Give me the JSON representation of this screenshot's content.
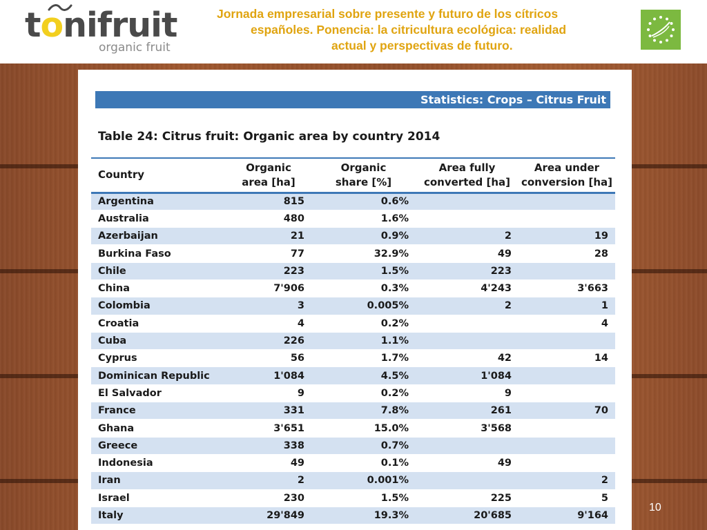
{
  "header": {
    "logo": {
      "text_before": "t",
      "text_o": "o",
      "text_after": "nifruit",
      "tagline": "organic fruit"
    },
    "title_lines": [
      "Jornada empresarial sobre presente y futuro de los cítricos",
      "españoles. Ponencia: la citricultura ecológica: realidad",
      "actual y perspectivas de futuro."
    ],
    "eu_logo_icon": "eu-organic-leaf-icon",
    "title_color": "#e0a410",
    "logo_accent_color": "#f2cf1f"
  },
  "document": {
    "banner": "Statistics: Crops – Citrus Fruit",
    "banner_color": "#3d78b6",
    "caption": "Table 24: Citrus fruit: Organic area by country 2014",
    "table": {
      "columns": [
        {
          "line1": "Country",
          "line2": ""
        },
        {
          "line1": "Organic",
          "line2": "area [ha]"
        },
        {
          "line1": "Organic",
          "line2": "share [%]"
        },
        {
          "line1": "Area fully",
          "line2": "converted [ha]"
        },
        {
          "line1": "Area under",
          "line2": "conversion [ha]"
        }
      ],
      "rows": [
        [
          "Argentina",
          "815",
          "0.6%",
          "",
          ""
        ],
        [
          "Australia",
          "480",
          "1.6%",
          "",
          ""
        ],
        [
          "Azerbaijan",
          "21",
          "0.9%",
          "2",
          "19"
        ],
        [
          "Burkina Faso",
          "77",
          "32.9%",
          "49",
          "28"
        ],
        [
          "Chile",
          "223",
          "1.5%",
          "223",
          ""
        ],
        [
          "China",
          "7'906",
          "0.3%",
          "4'243",
          "3'663"
        ],
        [
          "Colombia",
          "3",
          "0.005%",
          "2",
          "1"
        ],
        [
          "Croatia",
          "4",
          "0.2%",
          "",
          "4"
        ],
        [
          "Cuba",
          "226",
          "1.1%",
          "",
          ""
        ],
        [
          "Cyprus",
          "56",
          "1.7%",
          "42",
          "14"
        ],
        [
          "Dominican Republic",
          "1'084",
          "4.5%",
          "1'084",
          ""
        ],
        [
          "El Salvador",
          "9",
          "0.2%",
          "9",
          ""
        ],
        [
          "France",
          "331",
          "7.8%",
          "261",
          "70"
        ],
        [
          "Ghana",
          "3'651",
          "15.0%",
          "3'568",
          ""
        ],
        [
          "Greece",
          "338",
          "0.7%",
          "",
          ""
        ],
        [
          "Indonesia",
          "49",
          "0.1%",
          "49",
          ""
        ],
        [
          "Iran",
          "2",
          "0.001%",
          "",
          "2"
        ],
        [
          "Israel",
          "230",
          "1.5%",
          "225",
          "5"
        ],
        [
          "Italy",
          "29'849",
          "19.3%",
          "20'685",
          "9'164"
        ]
      ],
      "stripe_color": "#d4e1f1"
    }
  },
  "footer": {
    "page_number": "10"
  }
}
